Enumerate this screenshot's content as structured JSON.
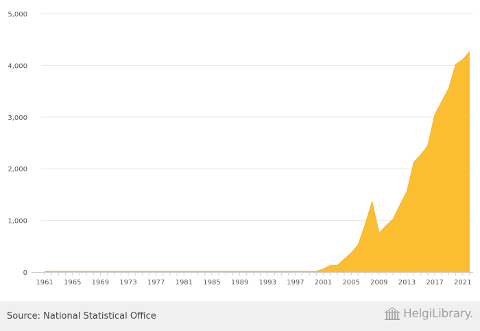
{
  "chart_data": {
    "type": "area",
    "title": "",
    "xlabel": "",
    "ylabel": "",
    "x": [
      1961,
      1962,
      1963,
      1964,
      1965,
      1966,
      1967,
      1968,
      1969,
      1970,
      1971,
      1972,
      1973,
      1974,
      1975,
      1976,
      1977,
      1978,
      1979,
      1980,
      1981,
      1982,
      1983,
      1984,
      1985,
      1986,
      1987,
      1988,
      1989,
      1990,
      1991,
      1992,
      1993,
      1994,
      1995,
      1996,
      1997,
      1998,
      1999,
      2000,
      2001,
      2002,
      2003,
      2004,
      2005,
      2006,
      2007,
      2008,
      2009,
      2010,
      2011,
      2012,
      2013,
      2014,
      2015,
      2016,
      2017,
      2018,
      2019,
      2020,
      2021,
      2022
    ],
    "series": [
      {
        "values": [
          15,
          15,
          15,
          15,
          15,
          15,
          15,
          15,
          15,
          15,
          15,
          15,
          15,
          15,
          15,
          15,
          15,
          15,
          15,
          15,
          15,
          15,
          15,
          15,
          15,
          15,
          15,
          15,
          15,
          15,
          15,
          15,
          15,
          15,
          15,
          15,
          15,
          15,
          15,
          15,
          60,
          130,
          130,
          250,
          370,
          530,
          920,
          1360,
          750,
          900,
          1020,
          1300,
          1560,
          2130,
          2270,
          2450,
          3050,
          3300,
          3560,
          4020,
          4110,
          4270
        ],
        "color": "#fbbe31"
      }
    ],
    "xticks": [
      "1961",
      "1965",
      "1969",
      "1973",
      "1977",
      "1981",
      "1985",
      "1989",
      "1993",
      "1997",
      "2001",
      "2005",
      "2009",
      "2013",
      "2017",
      "2021"
    ],
    "yticks": [
      "0",
      "1,000",
      "2,000",
      "3,000",
      "4,000",
      "5,000"
    ],
    "ylim": [
      0,
      5000
    ],
    "grid": true,
    "legend": "none"
  },
  "footer": {
    "source": "Source: National Statistical Office",
    "brand": "HelgiLibrary."
  },
  "colors": {
    "area_fill": "#fbbe31",
    "grid": "#e6e6e6",
    "axis_text": "#555555",
    "footer_bg": "#f0f0f0"
  }
}
